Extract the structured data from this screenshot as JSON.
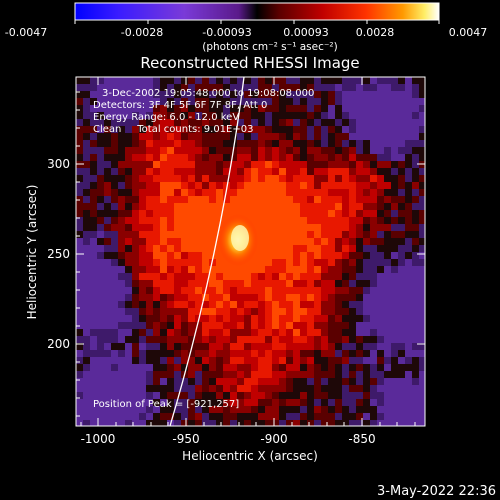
{
  "colorbar": {
    "tick_labels": [
      "-0.0047",
      "-0.0028",
      "-0.00093",
      "0.00093",
      "0.0028",
      "0.0047"
    ],
    "unit_label": "(photons cm⁻² s⁻¹ asec⁻²)"
  },
  "image": {
    "title": "Reconstructed RHESSI Image",
    "time_range": "3-Dec-2002 19:05:48.000 to 19:08:08.000",
    "detectors": "Detectors: 3F 4F 5F 6F 7F 8F, Att 0",
    "energy_range": "Energy Range: 6.0 - 12.0 keV",
    "method_counts": "Clean     Total counts: 9.01E+03",
    "peak_position": "Position of Peak = [-921,257]"
  },
  "axes": {
    "x_label": "Heliocentric X (arcsec)",
    "y_label": "Heliocentric Y (arcsec)",
    "x_ticks": [
      "-1000",
      "-950",
      "-900",
      "-850"
    ],
    "y_ticks": [
      "200",
      "250",
      "300"
    ]
  },
  "footer": {
    "timestamp": "3-May-2022 22:36"
  }
}
